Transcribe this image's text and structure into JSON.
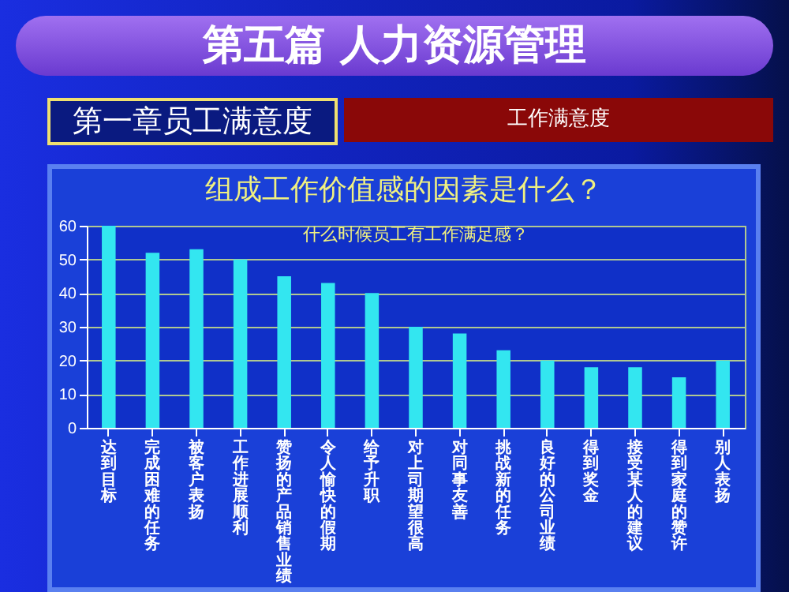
{
  "chart_data": {
    "type": "bar",
    "title": "第五篇 人力资源管理",
    "subtitle": "组成工作价值感的因素是什么？",
    "annotations": [
      "第一章员工满意度",
      "工作满意度",
      "什么时候员工有工作满足感？"
    ],
    "categories": [
      "达到目标",
      "完成困难的任务",
      "被客户表扬",
      "工作进展顺利",
      "赞扬的产品销售业绩",
      "令人愉快的假期",
      "给予升职",
      "对上司期望很高",
      "对同事友善",
      "挑战新的任务",
      "良好的公司业绩",
      "得到奖金",
      "接受某人的建议",
      "得到家庭的赞许",
      "别人表扬"
    ],
    "values": [
      60,
      52,
      53,
      50,
      45,
      43,
      40,
      30,
      28,
      23,
      20,
      18,
      18,
      15,
      20
    ],
    "color": "#33e6f0",
    "ylim": [
      0,
      60
    ],
    "yticks": [
      0,
      10,
      20,
      30,
      40,
      50,
      60
    ],
    "grid": true
  }
}
